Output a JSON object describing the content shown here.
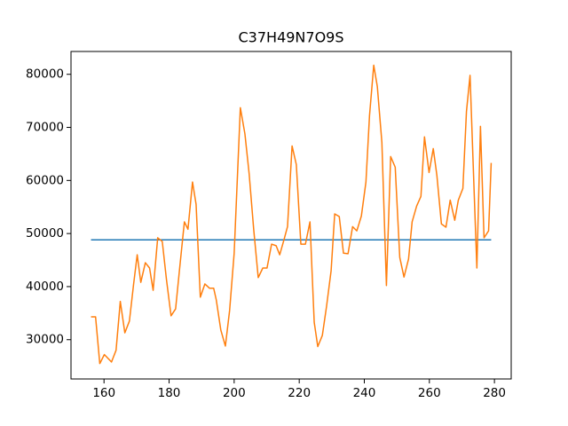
{
  "chart_data": {
    "type": "line",
    "title": "C37H49N7O9S",
    "xlim": [
      149.85,
      285.15
    ],
    "ylim": [
      22600,
      84300
    ],
    "xticks": [
      160,
      180,
      200,
      220,
      240,
      260,
      280
    ],
    "yticks": [
      30000,
      40000,
      50000,
      60000,
      70000,
      80000
    ],
    "grid": false,
    "series": [
      {
        "color": "#1f77b4",
        "x": [
          156,
          279
        ],
        "values": [
          48800,
          48800
        ]
      },
      {
        "color": "#ff7f0e",
        "x": [
          156,
          157.4,
          158.7,
          160.1,
          162.3,
          163.7,
          165,
          166.4,
          167.8,
          169.1,
          170.2,
          171.3,
          172.7,
          174,
          175.1,
          176.5,
          177.9,
          179.2,
          180.6,
          182,
          183.3,
          184.7,
          185.8,
          187.2,
          188.3,
          189.6,
          191,
          192.4,
          193.7,
          194.5,
          195.9,
          197.3,
          198.6,
          200,
          201.9,
          203.3,
          204.6,
          206,
          207.4,
          208.8,
          210.1,
          211.5,
          212.9,
          214,
          215.3,
          216.4,
          217.8,
          219.1,
          220.5,
          221.9,
          223.3,
          224.6,
          225.7,
          227.1,
          228.4,
          229.8,
          230.9,
          232.3,
          233.6,
          235,
          236.4,
          237.7,
          239.1,
          240.5,
          241.6,
          242.9,
          244,
          245.4,
          246.8,
          248.1,
          249.5,
          250.9,
          252.2,
          253.6,
          254.7,
          256.1,
          257.4,
          258.5,
          259.9,
          261.2,
          262.3,
          263.7,
          265.1,
          266.4,
          267.8,
          268.9,
          270.3,
          271.4,
          272.5,
          273.8,
          274.6,
          275.7,
          276.8,
          278.2,
          279
        ],
        "values": [
          34300,
          34300,
          25500,
          27200,
          25800,
          28000,
          37200,
          31300,
          33500,
          40500,
          46000,
          40800,
          44500,
          43500,
          39300,
          49200,
          48500,
          41300,
          34500,
          35800,
          43800,
          52200,
          50800,
          59700,
          55500,
          38000,
          40500,
          39700,
          39700,
          37500,
          31800,
          28800,
          35500,
          46300,
          73700,
          68800,
          61300,
          50800,
          41700,
          43500,
          43500,
          48000,
          47700,
          46000,
          48800,
          51300,
          66500,
          63000,
          48000,
          48000,
          52200,
          33300,
          28700,
          30800,
          36300,
          43000,
          53700,
          53200,
          46300,
          46200,
          51300,
          50500,
          53300,
          59700,
          72200,
          81700,
          77700,
          67200,
          40200,
          64500,
          62500,
          45500,
          41800,
          45200,
          52200,
          55200,
          57000,
          68200,
          61500,
          66000,
          61000,
          51800,
          51200,
          56300,
          52500,
          56300,
          58500,
          73000,
          79800,
          57200,
          43500,
          70200,
          49200,
          50500,
          63300
        ]
      }
    ]
  }
}
